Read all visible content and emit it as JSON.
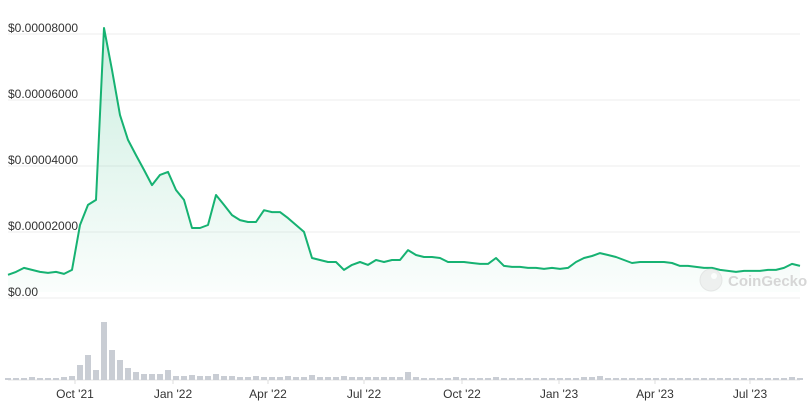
{
  "chart_data": {
    "type": "line",
    "watermark": "CoinGecko",
    "color": "#16b272",
    "volume_color": "#c9cdd4",
    "grid": true,
    "xlim": [
      0,
      99
    ],
    "xticks": [
      {
        "value": 8.375,
        "label": "Oct '21"
      },
      {
        "value": 20.625,
        "label": "Jan '22"
      },
      {
        "value": 32.5,
        "label": "Apr '22"
      },
      {
        "value": 44.5,
        "label": "Jul '22"
      },
      {
        "value": 56.75,
        "label": "Oct '22"
      },
      {
        "value": 68.875,
        "label": "Jan '23"
      },
      {
        "value": 80.875,
        "label": "Apr '23"
      },
      {
        "value": 92.75,
        "label": "Jul '23"
      }
    ],
    "ylim": [
      0,
      8e-05
    ],
    "yticks": [
      {
        "value": 0,
        "label": "$0.00"
      },
      {
        "value": 2e-05,
        "label": "$0.00002000"
      },
      {
        "value": 4e-05,
        "label": "$0.00004000"
      },
      {
        "value": 6e-05,
        "label": "$0.00006000"
      },
      {
        "value": 8e-05,
        "label": "$0.00008000"
      }
    ],
    "values": [
      5.2e-06,
      6.1e-06,
      7.3e-06,
      6.7e-06,
      6.1e-06,
      5.8e-06,
      6.1e-06,
      5.5e-06,
      6.7e-06,
      2.03e-05,
      2.64e-05,
      2.79e-05,
      8e-05,
      6.73e-05,
      5.36e-05,
      4.61e-05,
      4.15e-05,
      3.7e-05,
      3.24e-05,
      3.55e-05,
      3.64e-05,
      3.09e-05,
      2.79e-05,
      1.94e-05,
      1.94e-05,
      2.03e-05,
      2.94e-05,
      2.64e-05,
      2.33e-05,
      2.18e-05,
      2.12e-05,
      2.12e-05,
      2.48e-05,
      2.42e-05,
      2.42e-05,
      2.24e-05,
      2.03e-05,
      1.82e-05,
      1.03e-05,
      9.7e-06,
      9.1e-06,
      9.1e-06,
      6.7e-06,
      8.2e-06,
      9.1e-06,
      8.2e-06,
      9.7e-06,
      9.1e-06,
      9.7e-06,
      9.7e-06,
      1.27e-05,
      1.12e-05,
      1.06e-05,
      1.06e-05,
      1.03e-05,
      9.1e-06,
      9.1e-06,
      9.1e-06,
      8.8e-06,
      8.5e-06,
      8.5e-06,
      1.03e-05,
      7.9e-06,
      7.6e-06,
      7.6e-06,
      7.3e-06,
      7.3e-06,
      7e-06,
      7.3e-06,
      7e-06,
      7.3e-06,
      9.1e-06,
      1.03e-05,
      1.09e-05,
      1.18e-05,
      1.12e-05,
      1.06e-05,
      9.7e-06,
      8.8e-06,
      9.1e-06,
      9.1e-06,
      9.1e-06,
      9.1e-06,
      8.8e-06,
      7.9e-06,
      7.9e-06,
      7.6e-06,
      7.3e-06,
      7.3e-06,
      6.7e-06,
      6.4e-06,
      6.1e-06,
      6.4e-06,
      6.4e-06,
      6.4e-06,
      6.7e-06,
      6.7e-06,
      7.3e-06,
      8.5e-06,
      7.9e-06
    ],
    "volume": [
      2,
      2,
      2,
      3,
      2,
      2,
      2,
      3,
      4,
      15,
      25,
      10,
      58,
      30,
      20,
      12,
      8,
      6,
      6,
      6,
      10,
      4,
      4,
      5,
      4,
      4,
      6,
      4,
      4,
      3,
      3,
      4,
      3,
      3,
      3,
      4,
      3,
      3,
      5,
      3,
      3,
      3,
      4,
      3,
      3,
      3,
      3,
      3,
      3,
      3,
      8,
      3,
      2,
      2,
      2,
      2,
      3,
      2,
      2,
      2,
      2,
      3,
      2,
      2,
      2,
      2,
      2,
      2,
      2,
      2,
      2,
      2,
      3,
      3,
      4,
      2,
      2,
      2,
      2,
      2,
      2,
      2,
      2,
      2,
      2,
      2,
      2,
      2,
      2,
      2,
      2,
      2,
      2,
      2,
      2,
      2,
      2,
      2,
      3,
      2
    ]
  }
}
